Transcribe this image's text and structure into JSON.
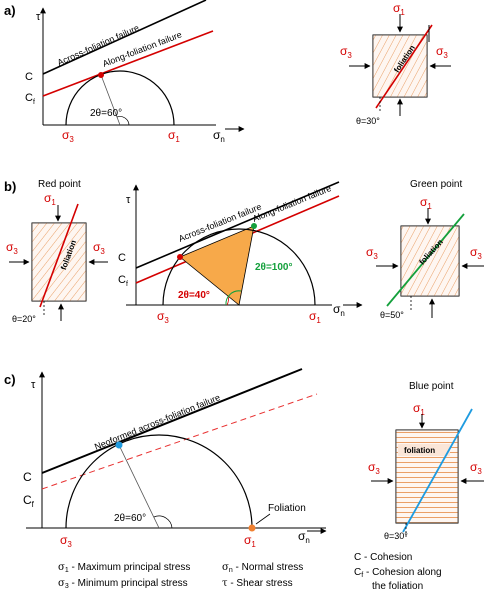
{
  "panels": {
    "a": {
      "label": "a)",
      "tau": "τ",
      "c": "C",
      "cf": "C",
      "cf_sub": "f",
      "across_line": "Across-foliation failure",
      "along_line": "Along-foliation failure",
      "angle": "2θ=60°",
      "sigma3": "σ",
      "sigma3_sub": "3",
      "sigma1": "σ",
      "sigma1_sub": "1",
      "sigman": "σ",
      "sigman_sub": "n",
      "block": {
        "top": "σ",
        "top_sub": "1",
        "left": "σ",
        "left_sub": "3",
        "right": "σ",
        "right_sub": "3",
        "foliation": "foliation",
        "theta": "θ=30°"
      }
    },
    "b": {
      "label": "b)",
      "red_title": "Red point",
      "green_title": "Green point",
      "tau": "τ",
      "c": "C",
      "cf": "C",
      "cf_sub": "f",
      "across_line": "Across-foliation failure",
      "along_line": "Along-foliation failure",
      "angle_red": "2θ=40°",
      "angle_green": "2θ=100°",
      "sigma3": "σ",
      "sigma3_sub": "3",
      "sigma1": "σ",
      "sigma1_sub": "1",
      "sigman": "σ",
      "sigman_sub": "n",
      "left_block": {
        "top": "σ",
        "top_sub": "1",
        "left": "σ",
        "left_sub": "3",
        "right": "σ",
        "right_sub": "3",
        "foliation": "foliation",
        "theta": "θ=20°"
      },
      "right_block": {
        "top": "σ",
        "top_sub": "1",
        "left": "σ",
        "left_sub": "3",
        "right": "σ",
        "right_sub": "3",
        "foliation": "foliation",
        "theta": "θ=50°"
      }
    },
    "c": {
      "label": "c)",
      "blue_title": "Blue point",
      "tau": "τ",
      "c": "C",
      "cf": "C",
      "cf_sub": "f",
      "neo_line": "Neoformed across-foliation failure",
      "angle": "2θ=60°",
      "foliation_label": "Foliation",
      "sigma3": "σ",
      "sigma3_sub": "3",
      "sigma1": "σ",
      "sigma1_sub": "1",
      "sigman": "σ",
      "sigman_sub": "n",
      "block": {
        "top": "σ",
        "top_sub": "1",
        "left": "σ",
        "left_sub": "3",
        "right": "σ",
        "right_sub": "3",
        "foliation": "foliation",
        "theta": "θ=30°"
      }
    }
  },
  "legend": {
    "s1_sym": "σ",
    "s1_sub": "1",
    "s1_text": " - Maximum principal stress",
    "s3_sym": "σ",
    "s3_sub": "3",
    "s3_text": " - Minimum principal stress",
    "sn_sym": "σ",
    "sn_sub": "n",
    "sn_text": " - Normal stress",
    "tau_sym": "τ",
    "tau_text": " - Shear stress",
    "c_text": "C - Cohesion",
    "cf_sym": "C",
    "cf_sub": "f",
    "cf_text": " - Cohesion along",
    "cf_text2": "the foliation"
  },
  "colors": {
    "red": "#d40000",
    "orange_fill": "#f7a94a",
    "hatch": "#e07a2a",
    "green": "#14a03c",
    "blue": "#1e9be0",
    "block_fill": "#fbe6d8",
    "dashed_red": "#e83030"
  }
}
